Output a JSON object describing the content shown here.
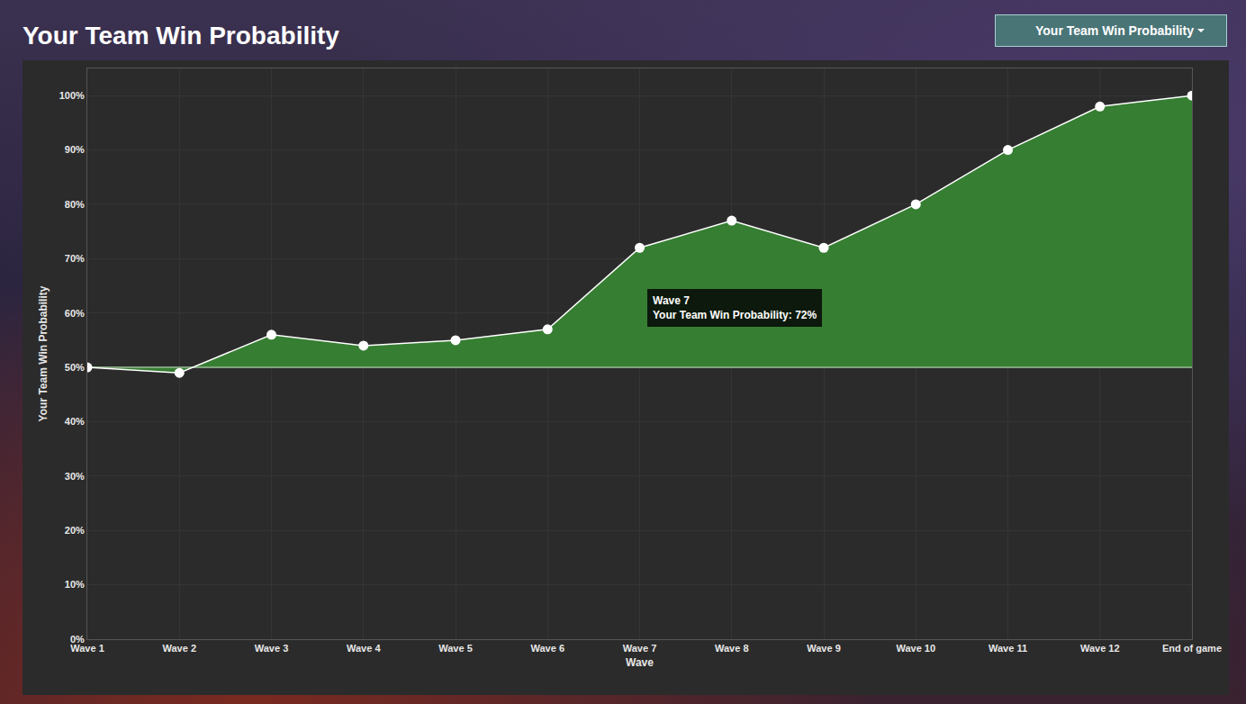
{
  "chart_data": {
    "type": "area",
    "title": "Your Team Win Probability",
    "dropdown": "Your Team Win Probability",
    "x_label": "Wave",
    "y_label": "Your Team Win Probability",
    "categories": [
      "Wave 1",
      "Wave 2",
      "Wave 3",
      "Wave 4",
      "Wave 5",
      "Wave 6",
      "Wave 7",
      "Wave 8",
      "Wave 9",
      "Wave 10",
      "Wave 11",
      "Wave 12",
      "End of game"
    ],
    "values": [
      50,
      49,
      56,
      54,
      55,
      57,
      72,
      77,
      72,
      80,
      90,
      98,
      100
    ],
    "baseline": 50,
    "color": "#367e32",
    "marker": "circle",
    "ylim": [
      0,
      105
    ],
    "yticks": [
      {
        "value": 0,
        "label": "0%"
      },
      {
        "value": 10,
        "label": "10%"
      },
      {
        "value": 20,
        "label": "20%"
      },
      {
        "value": 30,
        "label": "30%"
      },
      {
        "value": 40,
        "label": "40%"
      },
      {
        "value": 50,
        "label": "50%"
      },
      {
        "value": 60,
        "label": "60%"
      },
      {
        "value": 70,
        "label": "70%"
      },
      {
        "value": 80,
        "label": "80%"
      },
      {
        "value": 90,
        "label": "90%"
      },
      {
        "value": 100,
        "label": "100%"
      }
    ],
    "grid": true,
    "annotations": [
      {
        "category": "Wave 7",
        "lines": [
          "Wave 7",
          "Your Team Win Probability: 72%"
        ]
      }
    ]
  }
}
